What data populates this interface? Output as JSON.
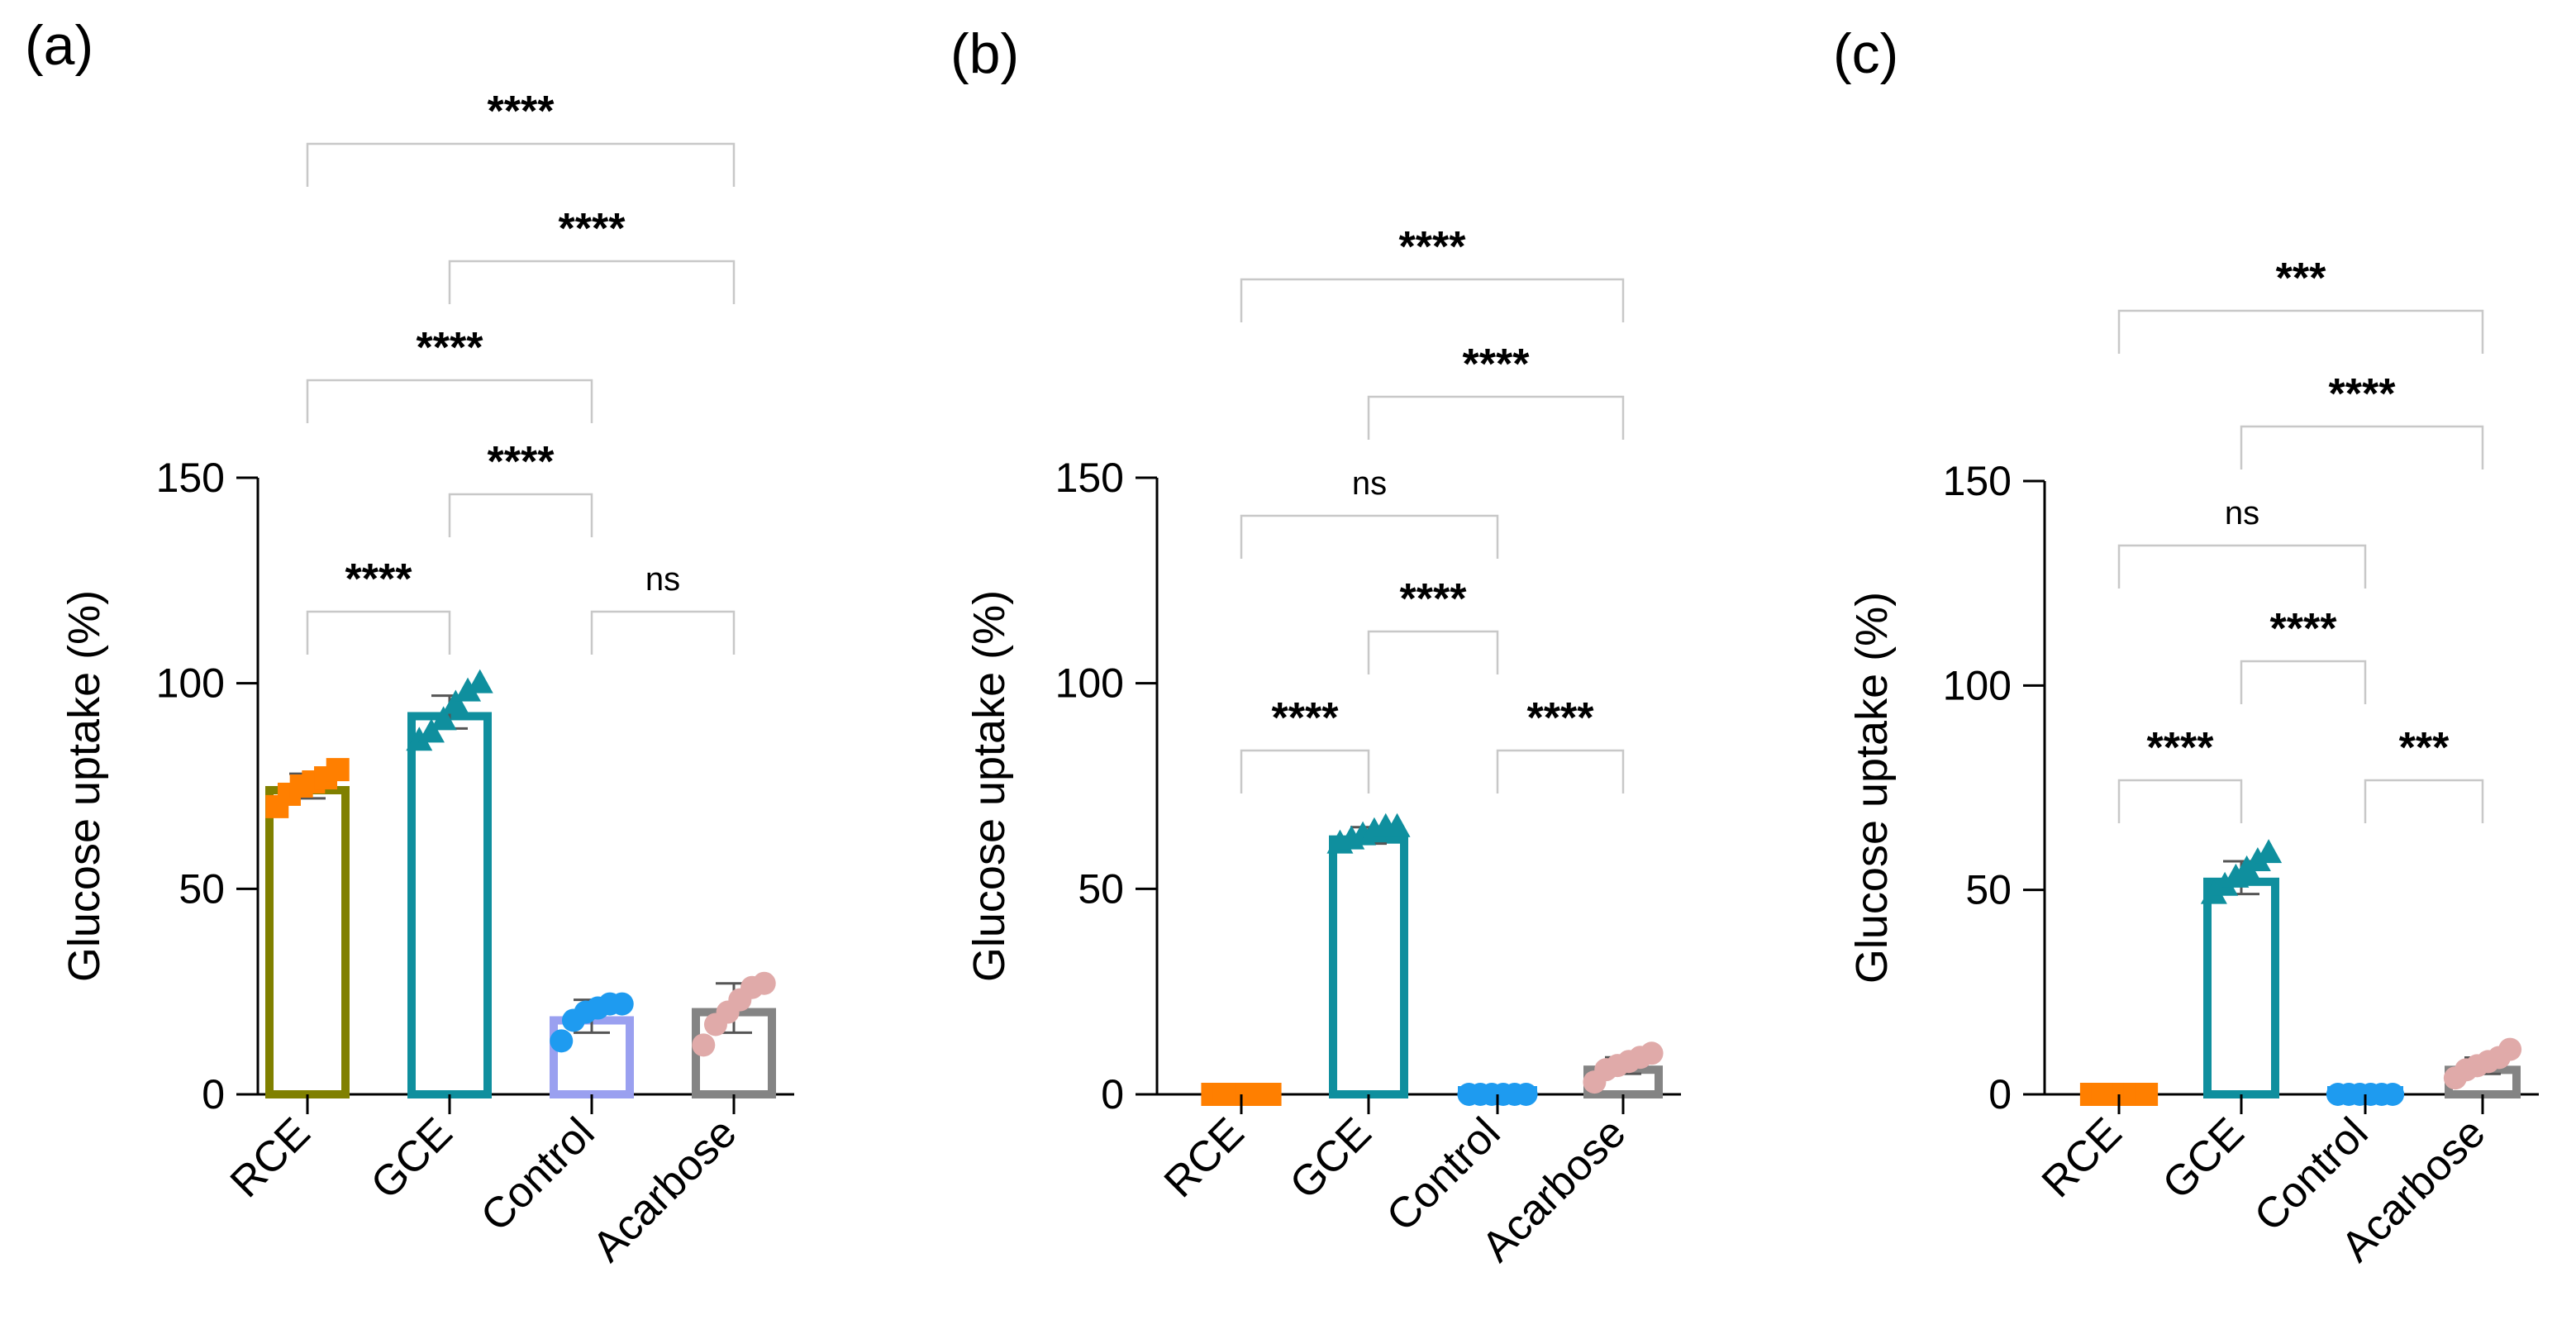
{
  "chart_data": [
    {
      "type": "bar",
      "panel_label": "(a)",
      "ylabel": "Glucose uptake (%)",
      "ylim": [
        0,
        150
      ],
      "yticks": [
        "0",
        "50",
        "100",
        "150"
      ],
      "categories": [
        "RCE",
        "GCE",
        "Control",
        "Acarbose"
      ],
      "colors": [
        "#808000",
        "#0f8f9e",
        "#9aa0f0",
        "#848484"
      ],
      "marker_colors": [
        "#ff7f00",
        "#0f8f9e",
        "#1e9bf0",
        "#e0aaa9"
      ],
      "markers": [
        "square",
        "triangle",
        "circle",
        "circle"
      ],
      "values": [
        75,
        93,
        19,
        21
      ],
      "sd": [
        3,
        4,
        4,
        6
      ],
      "points": [
        [
          70,
          73,
          75,
          76,
          77,
          79
        ],
        [
          86,
          88,
          91,
          95,
          98,
          100
        ],
        [
          13,
          18,
          20,
          21,
          22,
          22
        ],
        [
          12,
          17,
          20,
          23,
          26,
          27
        ]
      ],
      "comparisons": [
        {
          "pair": [
            0,
            3
          ],
          "label": "****",
          "level": 9
        },
        {
          "pair": [
            1,
            3
          ],
          "label": "****",
          "level": 8
        },
        {
          "pair": [
            0,
            2
          ],
          "label": "****",
          "level": 6
        },
        {
          "pair": [
            1,
            2
          ],
          "label": "****",
          "level": 5
        },
        {
          "pair": [
            0,
            1
          ],
          "label": "****",
          "level": 3
        },
        {
          "pair": [
            2,
            3
          ],
          "label": "ns",
          "level": 3
        }
      ]
    },
    {
      "type": "bar",
      "panel_label": "(b)",
      "ylabel": "Glucose uptake (%)",
      "ylim": [
        0,
        150
      ],
      "yticks": [
        "0",
        "50",
        "100",
        "150"
      ],
      "categories": [
        "RCE",
        "GCE",
        "Control",
        "Acarbose"
      ],
      "colors": [
        "#ff7f00",
        "#0f8f9e",
        "#1e9bf0",
        "#848484"
      ],
      "marker_colors": [
        "#ff7f00",
        "#0f8f9e",
        "#1e9bf0",
        "#e0aaa9"
      ],
      "markers": [
        "square",
        "triangle",
        "circle",
        "circle"
      ],
      "values": [
        0,
        63,
        0,
        7
      ],
      "sd": [
        0,
        2,
        0,
        2
      ],
      "points": [
        [
          0,
          0,
          0,
          0,
          0,
          0
        ],
        [
          61,
          62,
          63,
          64,
          65,
          65
        ],
        [
          0,
          0,
          0,
          0,
          0,
          0
        ],
        [
          3,
          6,
          7,
          8,
          9,
          10
        ]
      ],
      "comparisons": [
        {
          "pair": [
            0,
            3
          ],
          "label": "****",
          "level": 9
        },
        {
          "pair": [
            1,
            3
          ],
          "label": "****",
          "level": 8
        },
        {
          "pair": [
            0,
            2
          ],
          "label": "ns",
          "level": 6
        },
        {
          "pair": [
            1,
            2
          ],
          "label": "****",
          "level": 5
        },
        {
          "pair": [
            0,
            1
          ],
          "label": "****",
          "level": 3
        },
        {
          "pair": [
            2,
            3
          ],
          "label": "****",
          "level": 3
        }
      ]
    },
    {
      "type": "bar",
      "panel_label": "(c)",
      "ylabel": "Glucose uptake (%)",
      "ylim": [
        0,
        150
      ],
      "yticks": [
        "0",
        "50",
        "100",
        "150"
      ],
      "categories": [
        "RCE",
        "GCE",
        "Control",
        "Acarbose"
      ],
      "colors": [
        "#ff7f00",
        "#0f8f9e",
        "#1e9bf0",
        "#848484"
      ],
      "marker_colors": [
        "#ff7f00",
        "#0f8f9e",
        "#1e9bf0",
        "#e0aaa9"
      ],
      "markers": [
        "square",
        "triangle",
        "circle",
        "circle"
      ],
      "values": [
        0,
        53,
        0,
        7
      ],
      "sd": [
        0,
        4,
        0,
        2
      ],
      "points": [
        [
          0,
          0,
          0,
          0,
          0,
          0
        ],
        [
          49,
          51,
          53,
          55,
          57,
          59
        ],
        [
          0,
          0,
          0,
          0,
          0,
          0
        ],
        [
          4,
          6,
          7,
          8,
          9,
          11
        ]
      ],
      "comparisons": [
        {
          "pair": [
            0,
            3
          ],
          "label": "***",
          "level": 9
        },
        {
          "pair": [
            1,
            3
          ],
          "label": "****",
          "level": 8
        },
        {
          "pair": [
            0,
            2
          ],
          "label": "ns",
          "level": 6
        },
        {
          "pair": [
            1,
            2
          ],
          "label": "****",
          "level": 5
        },
        {
          "pair": [
            0,
            1
          ],
          "label": "****",
          "level": 3
        },
        {
          "pair": [
            2,
            3
          ],
          "label": "***",
          "level": 3
        }
      ]
    }
  ]
}
